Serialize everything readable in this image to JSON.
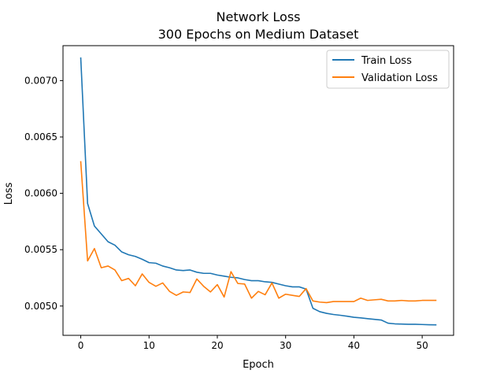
{
  "chart_data": {
    "type": "line",
    "title": "Network Loss",
    "subtitle": "300 Epochs on Medium Dataset",
    "xlabel": "Epoch",
    "ylabel": "Loss",
    "xlim": [
      -2.6,
      54.6
    ],
    "ylim": [
      0.00474,
      0.00731
    ],
    "xticks": [
      0,
      10,
      20,
      30,
      40,
      50
    ],
    "xtick_labels": [
      "0",
      "10",
      "20",
      "30",
      "40",
      "50"
    ],
    "yticks": [
      0.005,
      0.0055,
      0.006,
      0.0065,
      0.007
    ],
    "ytick_labels": [
      "0.0050",
      "0.0055",
      "0.0060",
      "0.0065",
      "0.0070"
    ],
    "grid": false,
    "legend_position": "top-right",
    "x": [
      0,
      1,
      2,
      3,
      4,
      5,
      6,
      7,
      8,
      9,
      10,
      11,
      12,
      13,
      14,
      15,
      16,
      17,
      18,
      19,
      20,
      21,
      22,
      23,
      24,
      25,
      26,
      27,
      28,
      29,
      30,
      31,
      32,
      33,
      34,
      35,
      36,
      37,
      38,
      39,
      40,
      41,
      42,
      43,
      44,
      45,
      46,
      47,
      48,
      49,
      50,
      51,
      52
    ],
    "series": [
      {
        "name": "Train Loss",
        "color": "#1f77b4",
        "values": [
          0.0072,
          0.00591,
          0.00571,
          0.00564,
          0.00557,
          0.00554,
          0.00548,
          0.005455,
          0.00544,
          0.005415,
          0.005385,
          0.00538,
          0.005355,
          0.00534,
          0.00532,
          0.005315,
          0.00532,
          0.0053,
          0.00529,
          0.00529,
          0.005275,
          0.005265,
          0.005255,
          0.00525,
          0.005235,
          0.005225,
          0.005225,
          0.005215,
          0.00521,
          0.005195,
          0.00518,
          0.00517,
          0.00517,
          0.00515,
          0.00498,
          0.00495,
          0.004935,
          0.004925,
          0.004918,
          0.00491,
          0.0049,
          0.004895,
          0.004888,
          0.004882,
          0.004876,
          0.004848,
          0.004842,
          0.00484,
          0.004838,
          0.004838,
          0.004836,
          0.004834,
          0.004833
        ]
      },
      {
        "name": "Validation Loss",
        "color": "#ff7f0e",
        "values": [
          0.00628,
          0.0054,
          0.00551,
          0.00534,
          0.005355,
          0.00532,
          0.005225,
          0.005245,
          0.00518,
          0.005285,
          0.00521,
          0.005175,
          0.005205,
          0.00513,
          0.005095,
          0.005125,
          0.00512,
          0.00524,
          0.005175,
          0.005125,
          0.00519,
          0.00508,
          0.005305,
          0.0052,
          0.005195,
          0.00507,
          0.00513,
          0.0051,
          0.005205,
          0.00507,
          0.005105,
          0.005095,
          0.005085,
          0.005155,
          0.005045,
          0.005035,
          0.00503,
          0.00504,
          0.00504,
          0.00504,
          0.00504,
          0.00507,
          0.00505,
          0.005055,
          0.00506,
          0.005045,
          0.005045,
          0.00505,
          0.005045,
          0.005045,
          0.00505,
          0.00505,
          0.00505
        ]
      }
    ]
  }
}
